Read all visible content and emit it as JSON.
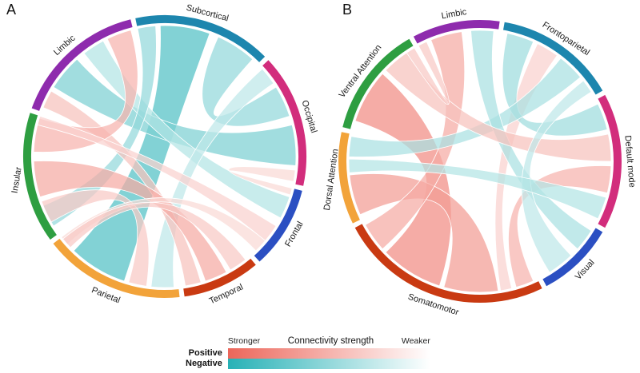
{
  "chart_data": {
    "type": "chord",
    "title": "Connectivity strength",
    "panels": [
      {
        "panel_label": "A",
        "segments": [
          {
            "name": "Subcortical",
            "color": "#1d86ae",
            "start": -12,
            "end": 45,
            "label_rot": 15
          },
          {
            "name": "Occipital",
            "color": "#d22d7c",
            "start": 47,
            "end": 102,
            "label_rot": 73
          },
          {
            "name": "Frontal",
            "color": "#2b4fc2",
            "start": 104,
            "end": 138,
            "label_rot": -60
          },
          {
            "name": "Temporal",
            "color": "#c93a12",
            "start": 140,
            "end": 172,
            "label_rot": -25
          },
          {
            "name": "Parietal",
            "color": "#f2a33a",
            "start": 174,
            "end": 232,
            "label_rot": 22
          },
          {
            "name": "Insular",
            "color": "#2e9e41",
            "start": 234,
            "end": 288,
            "label_rot": -81
          },
          {
            "name": "Limbic",
            "color": "#8e2bad",
            "start": 290,
            "end": 346,
            "label_rot": -42
          }
        ],
        "chords": [
          {
            "source": "Subcortical",
            "target": "Parietal",
            "s": [
              -2,
              20
            ],
            "t": [
              198,
              224
            ],
            "sign": "negative",
            "strength": 0.8
          },
          {
            "source": "Subcortical",
            "target": "Occipital",
            "s": [
              24,
              42
            ],
            "t": [
              58,
              72
            ],
            "sign": "negative",
            "strength": 0.5
          },
          {
            "source": "Limbic",
            "target": "Occipital",
            "s": [
              302,
              318
            ],
            "t": [
              76,
              94
            ],
            "sign": "negative",
            "strength": 0.6
          },
          {
            "source": "Limbic",
            "target": "Frontal",
            "s": [
              322,
              332
            ],
            "t": [
              108,
              118
            ],
            "sign": "negative",
            "strength": 0.35
          },
          {
            "source": "Subcortical",
            "target": "Insular",
            "s": [
              -12,
              -4
            ],
            "t": [
              238,
              248
            ],
            "sign": "negative",
            "strength": 0.5
          },
          {
            "source": "Occipital",
            "target": "Parietal",
            "s": [
              48,
              56
            ],
            "t": [
              176,
              186
            ],
            "sign": "negative",
            "strength": 0.3
          },
          {
            "source": "Limbic",
            "target": "Temporal",
            "s": [
              292,
              300
            ],
            "t": [
              164,
              171
            ],
            "sign": "positive",
            "strength": 0.4
          },
          {
            "source": "Insular",
            "target": "Temporal",
            "s": [
              252,
              268
            ],
            "t": [
              152,
              162
            ],
            "sign": "positive",
            "strength": 0.55
          },
          {
            "source": "Insular",
            "target": "Limbic",
            "s": [
              272,
              287
            ],
            "t": [
              334,
              345
            ],
            "sign": "positive",
            "strength": 0.5
          },
          {
            "source": "Insular",
            "target": "Parietal",
            "s": [
              240,
              250
            ],
            "t": [
              188,
              196
            ],
            "sign": "positive",
            "strength": 0.35
          },
          {
            "source": "Frontal",
            "target": "Insular",
            "s": [
              122,
              130
            ],
            "t": [
              284,
              288
            ],
            "sign": "positive",
            "strength": 0.3
          },
          {
            "source": "Frontal",
            "target": "Parietal",
            "s": [
              130,
              136
            ],
            "t": [
              228,
              232
            ],
            "sign": "positive",
            "strength": 0.25
          },
          {
            "source": "Occipital",
            "target": "Frontal",
            "s": [
              96,
              101
            ],
            "t": [
              104,
              107
            ],
            "sign": "positive",
            "strength": 0.25
          },
          {
            "source": "Parietal",
            "target": "Temporal",
            "s": [
              226,
              231
            ],
            "t": [
              142,
              150
            ],
            "sign": "positive",
            "strength": 0.35
          }
        ]
      },
      {
        "panel_label": "B",
        "segments": [
          {
            "name": "Limbic",
            "color": "#8e2bad",
            "start": -28,
            "end": 8,
            "label_rot": -10
          },
          {
            "name": "Frontoparietal",
            "color": "#1d86ae",
            "start": 10,
            "end": 60,
            "label_rot": 33
          },
          {
            "name": "Default mode",
            "color": "#d22d7c",
            "start": 62,
            "end": 118,
            "label_rot": 85
          },
          {
            "name": "Visual",
            "color": "#2b4fc2",
            "start": 120,
            "end": 152,
            "label_rot": -48
          },
          {
            "name": "Somatomotor",
            "color": "#c93a12",
            "start": 154,
            "end": 242,
            "label_rot": 18
          },
          {
            "name": "Dorsal Attention",
            "color": "#f2a33a",
            "start": 244,
            "end": 282,
            "label_rot": -82
          },
          {
            "name": "Ventral Attention",
            "color": "#2e9e41",
            "start": 284,
            "end": 330,
            "label_rot": -53
          }
        ],
        "chords": [
          {
            "source": "Ventral Attention",
            "target": "Somatomotor",
            "s": [
              288,
              312
            ],
            "t": [
              198,
              226
            ],
            "sign": "positive",
            "strength": 0.75
          },
          {
            "source": "Dorsal Attention",
            "target": "Somatomotor",
            "s": [
              246,
              264
            ],
            "t": [
              172,
              196
            ],
            "sign": "positive",
            "strength": 0.65
          },
          {
            "source": "Limbic",
            "target": "Somatomotor",
            "s": [
              -22,
              -8
            ],
            "t": [
              228,
              241
            ],
            "sign": "positive",
            "strength": 0.55
          },
          {
            "source": "Default mode",
            "target": "Somatomotor",
            "s": [
              92,
              104
            ],
            "t": [
              156,
              164
            ],
            "sign": "positive",
            "strength": 0.5
          },
          {
            "source": "Frontoparietal",
            "target": "Somatomotor",
            "s": [
              26,
              36
            ],
            "t": [
              166,
              171
            ],
            "sign": "positive",
            "strength": 0.3
          },
          {
            "source": "Frontoparietal",
            "target": "Default mode",
            "s": [
              12,
              24
            ],
            "t": [
              64,
              76
            ],
            "sign": "negative",
            "strength": 0.45
          },
          {
            "source": "Frontoparietal",
            "target": "Dorsal Attention",
            "s": [
              38,
              50
            ],
            "t": [
              272,
              281
            ],
            "sign": "negative",
            "strength": 0.4
          },
          {
            "source": "Limbic",
            "target": "Visual",
            "s": [
              -4,
              6
            ],
            "t": [
              122,
              132
            ],
            "sign": "negative",
            "strength": 0.4
          },
          {
            "source": "Default mode",
            "target": "Ventral Attention",
            "s": [
              78,
              90
            ],
            "t": [
              314,
              326
            ],
            "sign": "positive",
            "strength": 0.4
          },
          {
            "source": "Frontoparietal",
            "target": "Visual",
            "s": [
              52,
              58
            ],
            "t": [
              136,
              148
            ],
            "sign": "negative",
            "strength": 0.3
          },
          {
            "source": "Default mode",
            "target": "Dorsal Attention",
            "s": [
              106,
              116
            ],
            "t": [
              265,
              271
            ],
            "sign": "negative",
            "strength": 0.35
          },
          {
            "source": "Ventral Attention",
            "target": "Limbic",
            "s": [
              326,
              330
            ],
            "t": [
              -28,
              -24
            ],
            "sign": "positive",
            "strength": 0.35
          }
        ]
      }
    ],
    "legend": {
      "title": "Connectivity strength",
      "stronger_label": "Stronger",
      "weaker_label": "Weaker",
      "positive_label": "Positive",
      "negative_label": "Negative",
      "positive_color": "#ec665a",
      "negative_color": "#27b1b6"
    }
  }
}
